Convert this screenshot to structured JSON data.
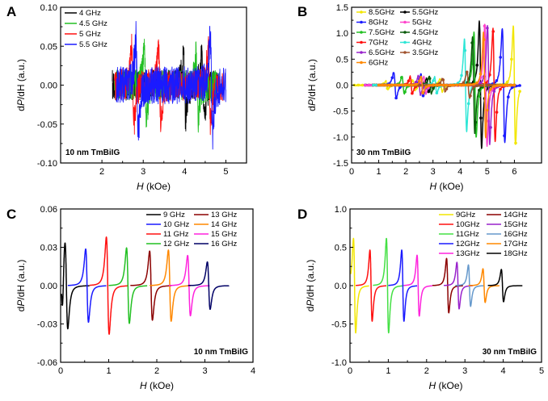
{
  "figure": {
    "panels": [
      "A",
      "B",
      "C",
      "D"
    ]
  },
  "chart_data": [
    {
      "panel": "A",
      "type": "line",
      "xlabel_italic": "H",
      "xlabel_rest": " (kOe)",
      "ylabel_pre": "d",
      "ylabel_italic": "P",
      "ylabel_rest": "/dH (a.u.)",
      "xlim": [
        1,
        5.5
      ],
      "ylim": [
        -0.1,
        0.1
      ],
      "xticks": [
        2,
        3,
        4,
        5
      ],
      "xtick_labels": [
        "2",
        "3",
        "4",
        "5"
      ],
      "yticks": [
        -0.1,
        -0.05,
        0,
        0.05,
        0.1
      ],
      "ytick_labels": [
        "-0.10",
        "-0.05",
        "0.00",
        "0.05",
        "0.10"
      ],
      "annotation": "10 nm TmBiIG",
      "legend_position": "top-left",
      "series": [
        {
          "name": "4   GHz",
          "color": "#000000",
          "x_range": [
            2.25,
            4.8
          ],
          "resonances": [
            4.0,
            4.45
          ],
          "amplitude": 0.05,
          "width": 0.05,
          "noise": 0.009
        },
        {
          "name": "4.5 GHz",
          "color": "#22c022",
          "x_range": [
            2.3,
            4.85
          ],
          "resonances": [
            3.05,
            4.3
          ],
          "amplitude": 0.05,
          "width": 0.05,
          "noise": 0.009
        },
        {
          "name": "5   GHz",
          "color": "#ff1010",
          "x_range": [
            2.3,
            4.95
          ],
          "resonances": [
            2.75,
            3.4,
            4.6
          ],
          "amplitude": 0.055,
          "width": 0.05,
          "noise": 0.009
        },
        {
          "name": "5.5 GHz",
          "color": "#1a1aff",
          "x_range": [
            2.35,
            5.0
          ],
          "resonances": [
            2.85,
            4.65
          ],
          "amplitude": 0.07,
          "width": 0.05,
          "noise": 0.011
        }
      ]
    },
    {
      "panel": "B",
      "type": "line",
      "xlabel_italic": "H",
      "xlabel_rest": " (kOe)",
      "ylabel_pre": "d",
      "ylabel_italic": "P",
      "ylabel_rest": "/dH (a.u.)",
      "xlim": [
        0,
        7
      ],
      "ylim": [
        -1.5,
        1.5
      ],
      "xticks": [
        0,
        1,
        2,
        3,
        4,
        5,
        6
      ],
      "xtick_labels": [
        "0",
        "1",
        "2",
        "3",
        "4",
        "5",
        "6"
      ],
      "yticks": [
        -1.5,
        -1.0,
        -0.5,
        0,
        0.5,
        1.0,
        1.5
      ],
      "ytick_labels": [
        "-1.5",
        "-1.0",
        "-0.5",
        "0.0",
        "0.5",
        "1.0",
        "1.5"
      ],
      "annotation": "30 nm TmBiIG",
      "legend_position": "top-left",
      "series": [
        {
          "name": "8.5GHz",
          "color": "#f2e600",
          "x_range": [
            0.1,
            6.2
          ],
          "resonances": [
            1.3,
            2.3,
            3.3,
            6.0
          ],
          "amplitudes": [
            0.1,
            0.12,
            0.15,
            1.35
          ],
          "width": 0.07
        },
        {
          "name": "5.5GHz",
          "color": "#000000",
          "x_range": [
            0.5,
            6.0
          ],
          "resonances": [
            2.8,
            4.75
          ],
          "amplitudes": [
            0.15,
            1.45
          ],
          "width": 0.07
        },
        {
          "name": "8GHz",
          "color": "#1a1aff",
          "x_range": [
            0.5,
            6.2
          ],
          "resonances": [
            1.6,
            2.6,
            5.6
          ],
          "amplitudes": [
            0.3,
            0.25,
            1.3
          ],
          "width": 0.08
        },
        {
          "name": "5GHz",
          "color": "#ff44cc",
          "x_range": [
            0.5,
            6.0
          ],
          "resonances": [
            2.7,
            4.95
          ],
          "amplitudes": [
            0.2,
            1.4
          ],
          "width": 0.07
        },
        {
          "name": "7.5GHz",
          "color": "#22c022",
          "x_range": [
            0.8,
            6.0
          ],
          "resonances": [
            1.9,
            4.55
          ],
          "amplitudes": [
            0.2,
            1.2
          ],
          "width": 0.07
        },
        {
          "name": "4.5GHz",
          "color": "#0a5a0a",
          "x_range": [
            0.8,
            6.0
          ],
          "resonances": [
            2.9,
            4.5
          ],
          "amplitudes": [
            0.2,
            1.1
          ],
          "width": 0.07
        },
        {
          "name": "7GHz",
          "color": "#ff1010",
          "x_range": [
            0.8,
            6.0
          ],
          "resonances": [
            2.2,
            5.25
          ],
          "amplitudes": [
            0.2,
            1.3
          ],
          "width": 0.07
        },
        {
          "name": "4GHz",
          "color": "#2ee6d6",
          "x_range": [
            0.8,
            6.0
          ],
          "resonances": [
            3.1,
            4.2
          ],
          "amplitudes": [
            0.18,
            1.05
          ],
          "width": 0.07
        },
        {
          "name": "6.5GHz",
          "color": "#9922cc",
          "x_range": [
            1.0,
            6.0
          ],
          "resonances": [
            2.5,
            5.05
          ],
          "amplitudes": [
            0.22,
            1.35
          ],
          "width": 0.07
        },
        {
          "name": "3.5GHz",
          "color": "#a0522d",
          "x_range": [
            1.0,
            6.0
          ],
          "resonances": [
            3.4,
            4.3
          ],
          "amplitudes": [
            0.15,
            0.3
          ],
          "width": 0.08
        },
        {
          "name": "6GHz",
          "color": "#ff8800",
          "x_range": [
            1.0,
            6.0
          ],
          "resonances": [
            2.6,
            4.9
          ],
          "amplitudes": [
            0.2,
            1.2
          ],
          "width": 0.07
        }
      ]
    },
    {
      "panel": "C",
      "type": "line",
      "xlabel_italic": "H",
      "xlabel_rest": " (kOe)",
      "ylabel_pre": "d",
      "ylabel_italic": "P",
      "ylabel_rest": "/dH (a.u.)",
      "xlim": [
        0,
        4
      ],
      "ylim": [
        -0.06,
        0.06
      ],
      "xticks": [
        0,
        1,
        2,
        3,
        4
      ],
      "xtick_labels": [
        "0",
        "1",
        "2",
        "3",
        "4"
      ],
      "yticks": [
        -0.06,
        -0.03,
        0,
        0.03,
        0.06
      ],
      "ytick_labels": [
        "-0.06",
        "-0.03",
        "0.00",
        "0.03",
        "0.06"
      ],
      "annotation": "10 nm TmBiIG",
      "legend_position": "top-right",
      "series": [
        {
          "name": "9  GHz",
          "color": "#000000",
          "center": 0.12,
          "amplitude": 0.04,
          "width": 0.05,
          "x_range": [
            0.02,
            0.6
          ],
          "extra_dip": -0.028
        },
        {
          "name": "13 GHz",
          "color": "#8b0000",
          "center": 1.88,
          "amplitude": 0.032,
          "width": 0.05,
          "x_range": [
            1.45,
            2.3
          ]
        },
        {
          "name": "10 GHz",
          "color": "#1a1aff",
          "center": 0.55,
          "amplitude": 0.034,
          "width": 0.05,
          "x_range": [
            0.15,
            0.95
          ]
        },
        {
          "name": "14 GHz",
          "color": "#ff8800",
          "center": 2.27,
          "amplitude": 0.033,
          "width": 0.05,
          "x_range": [
            1.85,
            2.7
          ]
        },
        {
          "name": "11 GHz",
          "color": "#ff1010",
          "center": 0.98,
          "amplitude": 0.045,
          "width": 0.05,
          "x_range": [
            0.6,
            1.4
          ]
        },
        {
          "name": "15 GHz",
          "color": "#ff22dd",
          "center": 2.67,
          "amplitude": 0.028,
          "width": 0.05,
          "x_range": [
            2.25,
            3.1
          ]
        },
        {
          "name": "12 GHz",
          "color": "#22c022",
          "center": 1.4,
          "amplitude": 0.035,
          "width": 0.05,
          "x_range": [
            1.0,
            1.8
          ]
        },
        {
          "name": "16 GHz",
          "color": "#000066",
          "center": 3.08,
          "amplitude": 0.022,
          "width": 0.05,
          "x_range": [
            2.65,
            3.5
          ]
        }
      ]
    },
    {
      "panel": "D",
      "type": "line",
      "xlabel_italic": "H",
      "xlabel_rest": " (kOe)",
      "ylabel_pre": "d",
      "ylabel_italic": "P",
      "ylabel_rest": "/dH (a.u.)",
      "xlim": [
        0,
        5
      ],
      "ylim": [
        -1.0,
        1.0
      ],
      "xticks": [
        0,
        1,
        2,
        3,
        4,
        5
      ],
      "xtick_labels": [
        "0",
        "1",
        "2",
        "3",
        "4",
        "5"
      ],
      "yticks": [
        -1.0,
        -0.5,
        0,
        0.5,
        1.0
      ],
      "ytick_labels": [
        "-1.0",
        "-0.5",
        "0.0",
        "0.5",
        "1.0"
      ],
      "annotation": "30 nm TmBiIG",
      "legend_position": "top-right",
      "series": [
        {
          "name": "9GHz",
          "color": "#f2e600",
          "center": 0.12,
          "amplitude": 0.73,
          "width": 0.05,
          "x_range": [
            0.02,
            0.5
          ]
        },
        {
          "name": "14GHz",
          "color": "#8b0000",
          "center": 2.55,
          "amplitude": 0.42,
          "width": 0.05,
          "x_range": [
            2.15,
            2.95
          ]
        },
        {
          "name": "10GHz",
          "color": "#ff1010",
          "center": 0.55,
          "amplitude": 0.55,
          "width": 0.05,
          "x_range": [
            0.15,
            0.95
          ]
        },
        {
          "name": "15GHz",
          "color": "#9922cc",
          "center": 2.82,
          "amplitude": 0.36,
          "width": 0.05,
          "x_range": [
            2.45,
            3.2
          ]
        },
        {
          "name": "11GHz",
          "color": "#44e044",
          "center": 0.98,
          "amplitude": 0.73,
          "width": 0.05,
          "x_range": [
            0.6,
            1.4
          ]
        },
        {
          "name": "16GHz",
          "color": "#6699cc",
          "center": 3.12,
          "amplitude": 0.32,
          "width": 0.05,
          "x_range": [
            2.75,
            3.5
          ]
        },
        {
          "name": "12GHz",
          "color": "#1a1aff",
          "center": 1.38,
          "amplitude": 0.55,
          "width": 0.05,
          "x_range": [
            1.0,
            1.75
          ]
        },
        {
          "name": "17GHz",
          "color": "#ff8800",
          "center": 3.5,
          "amplitude": 0.26,
          "width": 0.05,
          "x_range": [
            3.1,
            3.9
          ]
        },
        {
          "name": "13GHz",
          "color": "#ff22dd",
          "center": 1.78,
          "amplitude": 0.47,
          "width": 0.05,
          "x_range": [
            1.4,
            2.15
          ]
        },
        {
          "name": "18GHz",
          "color": "#000000",
          "center": 3.98,
          "amplitude": 0.25,
          "width": 0.05,
          "x_range": [
            3.6,
            4.5
          ]
        }
      ]
    }
  ]
}
